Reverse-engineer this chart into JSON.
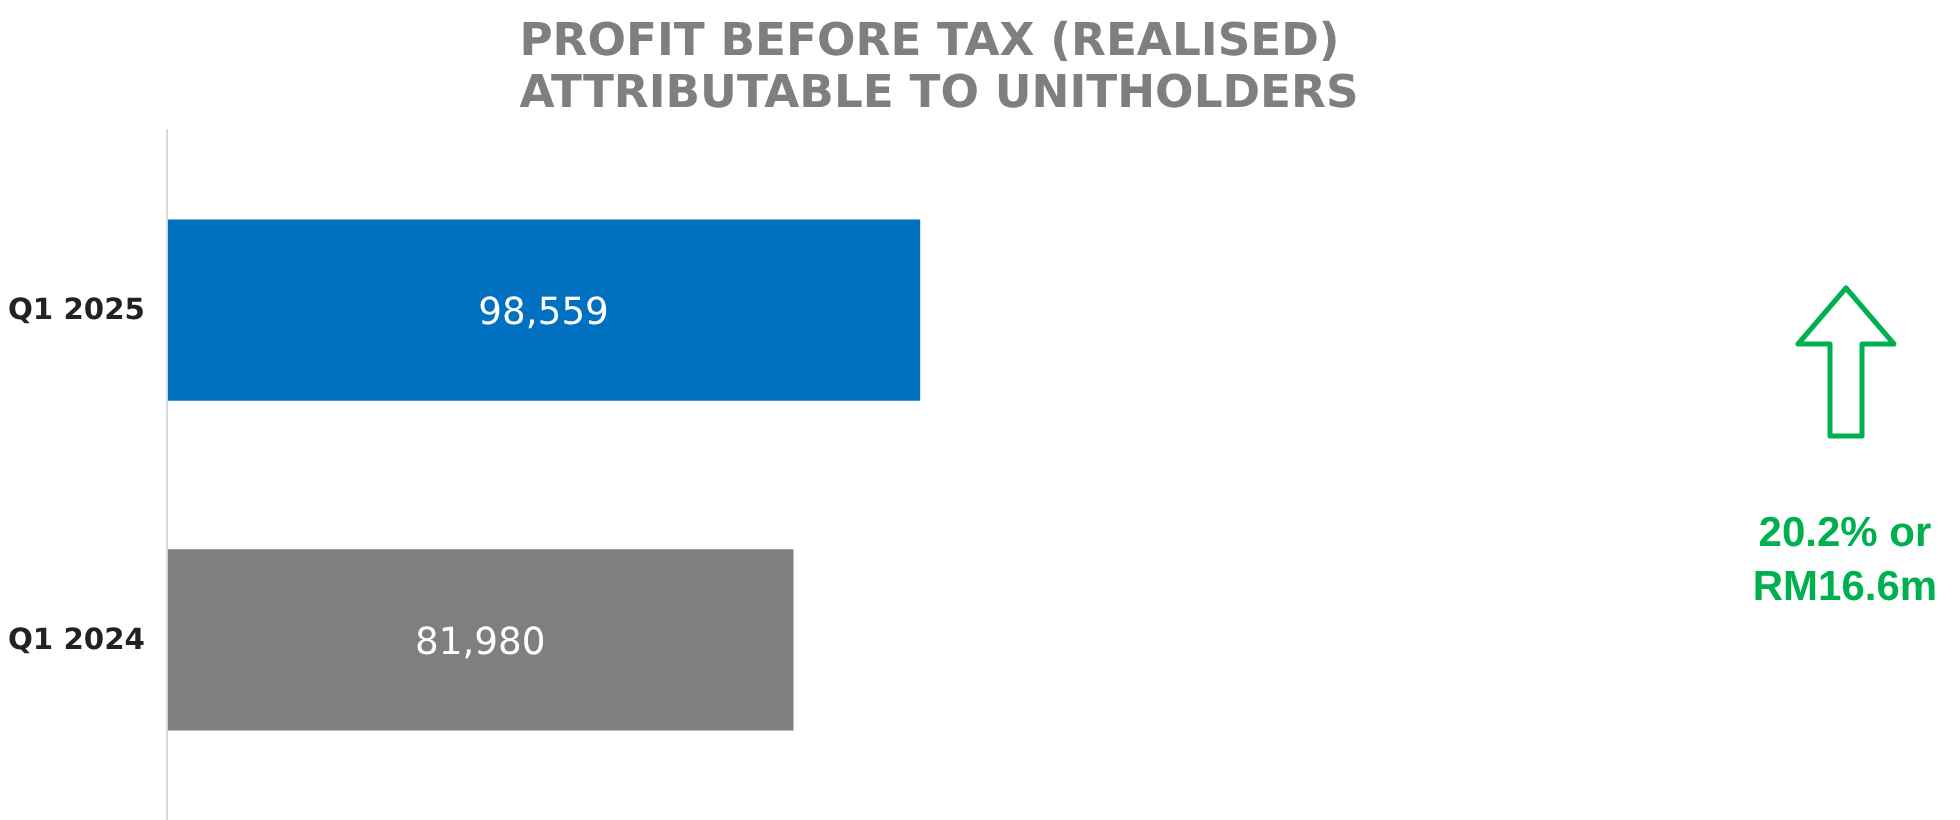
{
  "chart_data": {
    "type": "bar",
    "orientation": "horizontal",
    "title": "PROFIT BEFORE TAX (REALISED)\nATTRIBUTABLE TO UNITHOLDERS",
    "categories": [
      "Q1 2025",
      "Q1 2024"
    ],
    "values": [
      98559,
      81980
    ],
    "colors": [
      "#0070c0",
      "#7f7f7f"
    ],
    "value_labels": [
      "98,559",
      "81,980"
    ],
    "grid": false,
    "annotations": [
      "20.2% or\nRM16.6m"
    ]
  }
}
